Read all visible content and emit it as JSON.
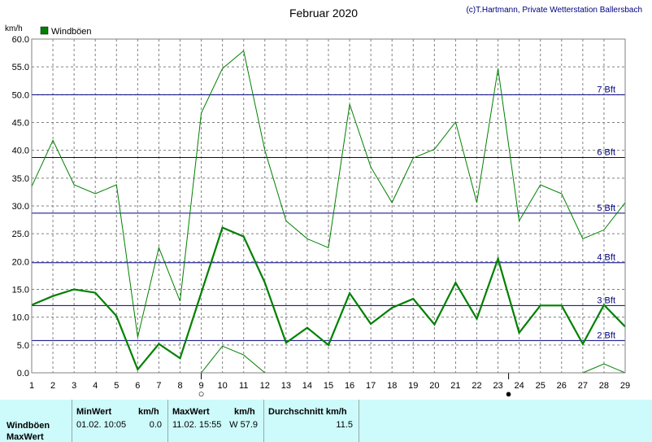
{
  "header": {
    "title": "Februar 2020",
    "copyright": "(c)T.Hartmann, Private Wetterstation Ballersbach",
    "unit": "km/h",
    "legend": "Windböen"
  },
  "chart_data": {
    "type": "line",
    "title": "Februar 2020",
    "ylabel": "km/h",
    "ylim": [
      0,
      60
    ],
    "yticks": [
      "0.0",
      "5.0",
      "10.0",
      "15.0",
      "20.0",
      "25.0",
      "30.0",
      "35.0",
      "40.0",
      "45.0",
      "50.0",
      "55.0",
      "60.0"
    ],
    "categories": [
      "1",
      "2",
      "3",
      "4",
      "5",
      "6",
      "7",
      "8",
      "9",
      "10",
      "11",
      "12",
      "13",
      "14",
      "15",
      "16",
      "17",
      "18",
      "19",
      "20",
      "21",
      "22",
      "23",
      "24",
      "25",
      "26",
      "27",
      "28",
      "29"
    ],
    "legend": {
      "entries": [
        "Windböen"
      ],
      "position": "top-left"
    },
    "grid": true,
    "series": [
      {
        "name": "Windböen",
        "role": "max",
        "color": "#008000",
        "values": [
          33.5,
          41.8,
          33.8,
          32.2,
          33.8,
          6.4,
          22.5,
          12.9,
          46.7,
          54.7,
          57.9,
          40.0,
          27.3,
          24.1,
          22.5,
          48.3,
          37.0,
          30.6,
          38.6,
          40.2,
          45.1,
          30.6,
          54.7,
          27.3,
          33.8,
          32.2,
          24.1,
          25.7,
          30.6
        ]
      },
      {
        "name": "Windböen",
        "role": "mean",
        "color": "#008000",
        "values": [
          12.2,
          13.8,
          15.0,
          14.4,
          10.2,
          0.6,
          5.2,
          2.6,
          14.4,
          26.1,
          24.5,
          16.2,
          5.4,
          8.1,
          5.0,
          14.3,
          8.8,
          11.7,
          13.3,
          8.7,
          16.2,
          9.7,
          20.5,
          7.2,
          12.1,
          12.1,
          5.2,
          12.2,
          8.3
        ]
      },
      {
        "name": "Windböen",
        "role": "min",
        "color": "#008000",
        "values": [
          null,
          null,
          null,
          null,
          null,
          null,
          null,
          null,
          0.0,
          4.8,
          3.2,
          0.0,
          null,
          null,
          null,
          null,
          null,
          null,
          null,
          null,
          null,
          null,
          null,
          null,
          null,
          null,
          0.0,
          1.6,
          0.0
        ]
      }
    ],
    "reference_lines": [
      {
        "y": 5.8,
        "label": "2 Bft"
      },
      {
        "y": 12.1,
        "label": "3 Bft"
      },
      {
        "y": 19.8,
        "label": "4 Bft"
      },
      {
        "y": 28.7,
        "label": "5 Bft"
      },
      {
        "y": 38.7,
        "label": "6 Bft"
      },
      {
        "y": 50.0,
        "label": "7 Bft"
      }
    ],
    "moon_phases": [
      {
        "day": 9,
        "phase": "full",
        "symbol": "○"
      },
      {
        "day": 23.5,
        "phase": "new",
        "symbol": "●"
      }
    ]
  },
  "stats": {
    "row_label": "Windböen",
    "row_label2": "MaxWert",
    "min_header": "MinWert",
    "min_unit": "km/h",
    "min_datetime": "01.02.  10:05",
    "min_value": "0.0",
    "max_header": "MaxWert",
    "max_unit": "km/h",
    "max_datetime": "11.02.  15:55",
    "max_value": "W 57.9",
    "avg_header": "Durchschnitt km/h",
    "avg_value": "11.5"
  }
}
